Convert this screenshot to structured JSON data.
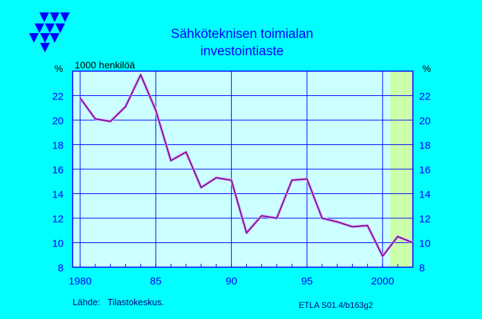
{
  "header": {
    "title_line1": "Sähköteknisen  toimialan",
    "title_line2": "investointiaste",
    "unit": "1000 henkilöä"
  },
  "footer": {
    "source": "Lähde:   Tilastokeskus.",
    "code": "ETLA S01.4/b163g2"
  },
  "logo": {
    "icon": "etla-triangles-logo-icon",
    "color": "#0000ff"
  },
  "chart_data": {
    "type": "line",
    "xlabel": "",
    "ylabel": "%",
    "ylabel_right": "%",
    "xlim": [
      1979.5,
      2002
    ],
    "ylim": [
      8,
      24
    ],
    "x_ticks": [
      1980,
      1985,
      1990,
      1995,
      2000
    ],
    "x_tick_labels": [
      "1980",
      "85",
      "90",
      "95",
      "2000"
    ],
    "y_ticks": [
      8,
      10,
      12,
      14,
      16,
      18,
      20,
      22
    ],
    "y_tick_labels": [
      "8",
      "10",
      "12",
      "14",
      "16",
      "18",
      "20",
      "22"
    ],
    "grid": true,
    "forecast_from": 2000.5,
    "series": [
      {
        "color": "#800080",
        "x": [
          1980,
          1981,
          1982,
          1983,
          1984,
          1985,
          1986,
          1987,
          1988,
          1989,
          1990,
          1991,
          1992,
          1993,
          1994,
          1995,
          1996,
          1997,
          1998,
          1999,
          2000,
          2001,
          2002
        ],
        "y": [
          21.8,
          20.1,
          19.9,
          21.1,
          23.7,
          20.8,
          16.7,
          17.4,
          14.5,
          15.3,
          15.1,
          10.8,
          12.2,
          12.0,
          15.1,
          15.2,
          12.0,
          11.7,
          11.3,
          11.4,
          8.9,
          10.5,
          10.0
        ]
      }
    ],
    "colors": {
      "page": "#00ffff",
      "plot": "#ccffff",
      "forecast": "#ccffaa",
      "grid": "#0000ff",
      "text": "#0000ff",
      "footer_text": "#000080"
    }
  }
}
